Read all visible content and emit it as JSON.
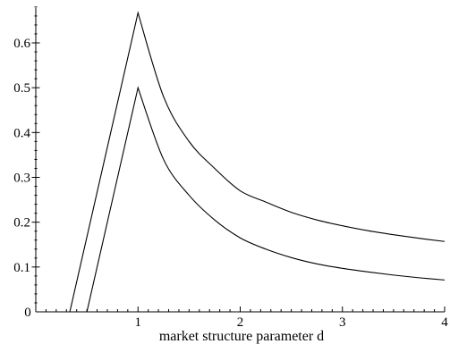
{
  "chart_data": {
    "type": "line",
    "title": "",
    "xlabel": "market structure parameter d",
    "ylabel": "",
    "xlim": [
      0,
      4
    ],
    "ylim": [
      0,
      0.69
    ],
    "grid": false,
    "legend": "none",
    "x_ticks": [
      {
        "value": 0,
        "label": "0"
      },
      {
        "value": 1,
        "label": "1"
      },
      {
        "value": 2,
        "label": "2"
      },
      {
        "value": 3,
        "label": "3"
      },
      {
        "value": 4,
        "label": "4"
      }
    ],
    "y_ticks": [
      {
        "value": 0.1,
        "label": "0.1"
      },
      {
        "value": 0.2,
        "label": "0.2"
      },
      {
        "value": 0.3,
        "label": "0.3"
      },
      {
        "value": 0.4,
        "label": "0.4"
      },
      {
        "value": 0.5,
        "label": "0.5"
      },
      {
        "value": 0.6,
        "label": "0.6"
      }
    ],
    "series": [
      {
        "color": "#000000",
        "x": [
          0.333,
          1.0,
          1.25,
          1.5,
          1.75,
          2.0,
          2.25,
          2.5,
          2.75,
          3.0,
          3.25,
          3.5,
          3.75,
          4.0
        ],
        "y": [
          0.0,
          0.667,
          0.48,
          0.38,
          0.32,
          0.27,
          0.245,
          0.222,
          0.205,
          0.192,
          0.181,
          0.172,
          0.164,
          0.157
        ]
      },
      {
        "color": "#000000",
        "x": [
          0.5,
          1.0,
          1.25,
          1.5,
          1.75,
          2.0,
          2.25,
          2.5,
          2.75,
          3.0,
          3.25,
          3.5,
          3.75,
          4.0
        ],
        "y": [
          0.0,
          0.5,
          0.34,
          0.26,
          0.205,
          0.165,
          0.14,
          0.121,
          0.107,
          0.097,
          0.089,
          0.082,
          0.076,
          0.071
        ]
      }
    ]
  }
}
